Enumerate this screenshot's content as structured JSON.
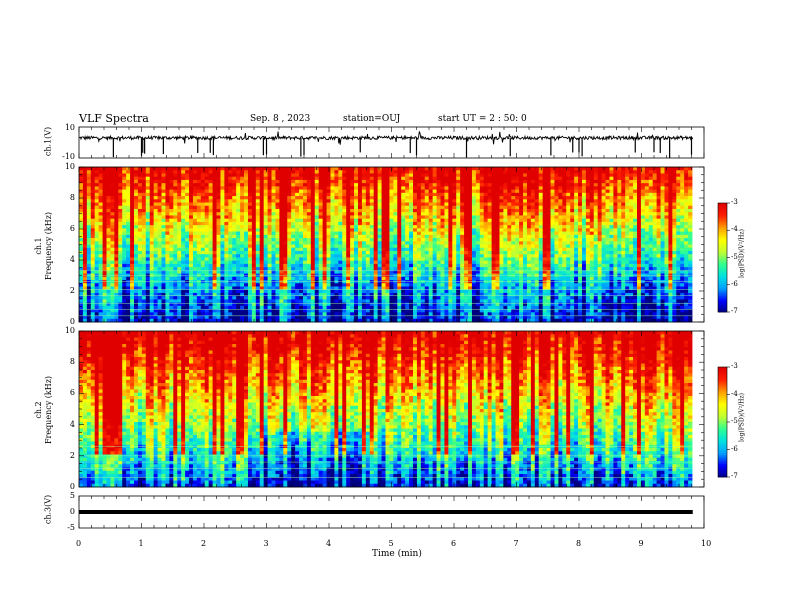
{
  "header": {
    "title": "VLF Spectra",
    "date": "Sep. 8 , 2023",
    "station": "station=OUJ",
    "start": "start UT =  2 : 50: 0"
  },
  "colors": {
    "waveform": "#000000",
    "axis": "#000000",
    "colormap": [
      "#000080",
      "#0000ff",
      "#00a0ff",
      "#00e0e0",
      "#30ff90",
      "#c0ff30",
      "#ffff00",
      "#ffa000",
      "#ff2000",
      "#e00000",
      "#ffffff"
    ]
  },
  "chart_data": [
    {
      "type": "line",
      "name": "ch1-waveform",
      "ylabel": "ch.1(V)",
      "ylim": [
        -10,
        10
      ],
      "yticks": [
        "10",
        "-10"
      ],
      "xlim": [
        0,
        10
      ],
      "baseline": 3,
      "spikes_min": [
        0.55,
        1.0,
        1.02,
        1.05,
        1.35,
        1.9,
        2.1,
        2.15,
        2.95,
        3.0,
        3.55,
        3.6,
        4.5,
        5.3,
        5.4,
        6.2,
        6.9,
        7.55,
        7.9,
        8.0,
        8.05,
        8.9,
        9.2,
        9.3,
        9.45,
        9.8
      ]
    },
    {
      "type": "heatmap",
      "name": "ch1-spectrogram",
      "ylabel": "ch.1\nFrequency (kHz)",
      "ylim": [
        0,
        10
      ],
      "yticks": [
        "0",
        "2",
        "4",
        "6",
        "8",
        "10"
      ],
      "xlim": [
        0,
        9.82
      ],
      "colorbar": {
        "label": "log(PSD)(V²/Hz)",
        "range": [
          -7,
          -3
        ],
        "ticks": [
          "-3",
          "-4",
          "-5",
          "-6",
          "-7"
        ]
      }
    },
    {
      "type": "heatmap",
      "name": "ch2-spectrogram",
      "ylabel": "ch.2\nFrequency (kHz)",
      "ylim": [
        0,
        10
      ],
      "yticks": [
        "0",
        "2",
        "4",
        "6",
        "8",
        "10"
      ],
      "xlim": [
        0,
        9.82
      ],
      "colorbar": {
        "label": "log(PSD)(V²/Hz)",
        "range": [
          -7,
          -3
        ],
        "ticks": [
          "-3",
          "-4",
          "-5",
          "-6",
          "-7"
        ]
      }
    },
    {
      "type": "line",
      "name": "ch3-waveform",
      "ylabel": "ch.3(V)",
      "ylim": [
        -5,
        5
      ],
      "yticks": [
        "5",
        "0",
        "-5"
      ],
      "xlim": [
        0,
        10
      ],
      "baseline": 0
    }
  ],
  "xaxis": {
    "label": "Time (min)",
    "ticks": [
      "0",
      "1",
      "2",
      "3",
      "4",
      "5",
      "6",
      "7",
      "8",
      "9",
      "10"
    ]
  }
}
